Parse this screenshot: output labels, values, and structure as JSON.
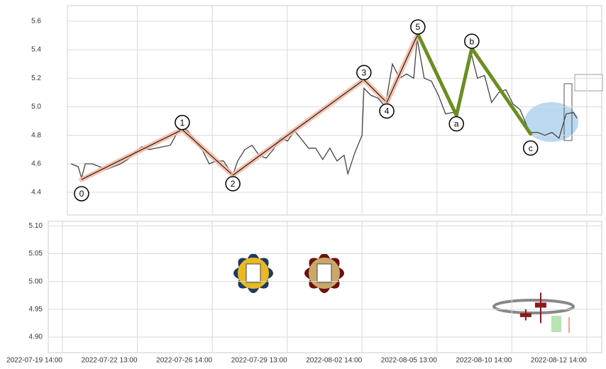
{
  "chart_data": [
    {
      "type": "line",
      "xlim": [
        0,
        144
      ],
      "ylim": [
        4.241,
        5.709
      ],
      "yticks": [
        5.6,
        5.4,
        5.2,
        {
          "value": 5.0,
          "label": "5.0"
        },
        4.8,
        4.6,
        4.4
      ],
      "grid": true,
      "x": [
        2.3,
        4.2,
        5.1,
        6.1,
        8.0,
        9.9,
        11.7,
        13.6,
        15.5,
        17.4,
        19.3,
        21.2,
        23.1,
        25.0,
        26.9,
        28.8,
        30.7,
        32.0,
        33.5,
        35.4,
        37.3,
        39.2,
        41.1,
        43.0,
        45.5,
        46.8,
        48.7,
        50.6,
        52.5,
        54.4,
        56.3,
        58.2,
        60.1,
        62.0,
        63.9,
        65.7,
        67.6,
        69.5,
        71.4,
        73.3,
        75.2,
        76.2,
        78.1,
        80.0,
        80.5,
        82.4,
        84.3,
        86.2,
        88.1,
        90.0,
        91.9,
        93.8,
        94.7,
        96.6,
        98.5,
        100.4,
        102.3,
        104.2,
        105.2,
        107.0,
        108.9,
        110.8,
        112.7,
        114.6,
        116.5,
        118.4,
        120.3,
        122.2,
        124.1,
        125.0,
        126.9,
        128.8,
        130.7,
        132.6,
        134.5,
        136.4,
        137.4
      ],
      "series": [
        {
          "color": "#444444",
          "values": [
            4.6,
            4.58,
            4.5,
            4.6,
            4.6,
            4.58,
            4.56,
            4.58,
            4.6,
            4.63,
            4.68,
            4.72,
            4.7,
            4.71,
            4.72,
            4.73,
            4.82,
            4.86,
            4.83,
            4.76,
            4.7,
            4.6,
            4.62,
            4.62,
            4.52,
            4.62,
            4.7,
            4.73,
            4.66,
            4.64,
            4.7,
            4.78,
            4.76,
            4.83,
            4.77,
            4.71,
            4.71,
            4.63,
            4.71,
            4.62,
            4.66,
            4.53,
            4.68,
            4.8,
            5.13,
            5.08,
            5.06,
            5.0,
            5.3,
            5.2,
            5.23,
            5.2,
            5.48,
            5.2,
            5.18,
            5.08,
            4.95,
            4.96,
            4.95,
            5.12,
            5.4,
            5.2,
            5.22,
            5.03,
            5.1,
            5.12,
            5.02,
            4.98,
            4.86,
            4.82,
            4.82,
            4.8,
            4.82,
            4.78,
            4.95,
            4.96,
            4.92
          ]
        }
      ],
      "waves": [
        {
          "color": "#f4b8a0",
          "labels": [
            "0",
            "1",
            "2",
            "3",
            "4",
            "5"
          ],
          "x": [
            5.1,
            32.0,
            45.5,
            80.5,
            86.6,
            94.9
          ],
          "values": [
            4.49,
            4.84,
            4.52,
            5.19,
            5.03,
            5.51
          ]
        },
        {
          "color": "#6b8e23",
          "labels": [
            "a",
            "b",
            "c"
          ],
          "x": [
            105.2,
            109.3,
            125.0
          ],
          "values": [
            4.94,
            5.41,
            4.81
          ]
        }
      ]
    },
    {
      "type": "candlestick",
      "xlim": [
        0,
        144
      ],
      "ylim": [
        4.872,
        5.108
      ],
      "yticks": [
        {
          "value": 5.1,
          "label": "5.10"
        },
        5.05,
        {
          "value": 5.0,
          "label": "5.00"
        },
        4.95,
        {
          "value": 4.9,
          "label": "4.90"
        }
      ],
      "xticks": [
        {
          "value": 0,
          "label": "2022-07-19 14:00"
        },
        {
          "value": 20,
          "label": "2022-07-22 13:00"
        },
        {
          "value": 40,
          "label": "2022-07-26 14:00"
        },
        {
          "value": 60,
          "label": "2022-07-29 13:00"
        },
        {
          "value": 80,
          "label": "2022-08-02 14:00"
        },
        {
          "value": 100,
          "label": "2022-08-05 13:00"
        },
        {
          "value": 120,
          "label": "2022-08-10 14:00"
        },
        {
          "value": 140,
          "label": "2022-08-12 14:00"
        }
      ],
      "grid": true,
      "color": "#8b1a1a",
      "x": [
        123.7,
        127.7
      ],
      "open": [
        4.943,
        4.953
      ],
      "close": [
        4.936,
        4.962
      ],
      "high": [
        4.95,
        4.98
      ],
      "low": [
        4.93,
        4.925
      ]
    }
  ]
}
